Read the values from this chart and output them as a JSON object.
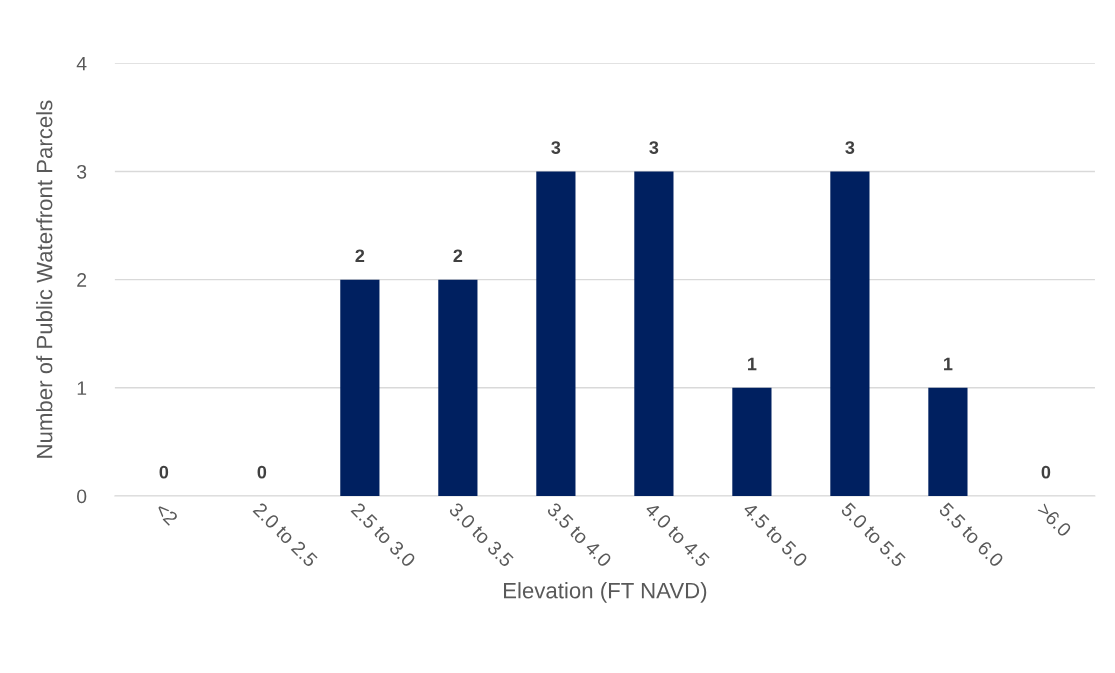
{
  "chart_data": {
    "type": "bar",
    "xlabel": "Elevation (FT NAVD)",
    "ylabel": "Number of Public Waterfront Parcels",
    "categories": [
      "<2",
      "2.0 to 2.5",
      "2.5 to 3.0",
      "3.0 to 3.5",
      "3.5 to 4.0",
      "4.0 to 4.5",
      "4.5 to 5.0",
      "5.0 to 5.5",
      "5.5 to 6.0",
      ">6.0"
    ],
    "values": [
      0,
      0,
      2,
      2,
      3,
      3,
      1,
      3,
      1,
      0
    ],
    "color": "#002060",
    "ylim": [
      0,
      4
    ],
    "yticks": [
      0,
      1,
      2,
      3,
      4
    ],
    "grid": "y",
    "data_labels": true,
    "legend": false
  }
}
